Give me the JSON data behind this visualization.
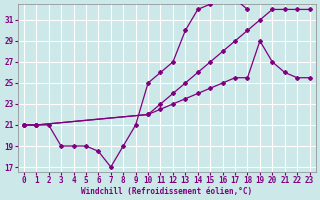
{
  "xlabel": "Windchill (Refroidissement éolien,°C)",
  "bg_color": "#cce8e8",
  "line_color": "#800080",
  "grid_color": "#ffffff",
  "xlim": [
    -0.5,
    23.5
  ],
  "ylim": [
    16.5,
    32.5
  ],
  "xticks": [
    0,
    1,
    2,
    3,
    4,
    5,
    6,
    7,
    8,
    9,
    10,
    11,
    12,
    13,
    14,
    15,
    16,
    17,
    18,
    19,
    20,
    21,
    22,
    23
  ],
  "yticks": [
    17,
    19,
    21,
    23,
    25,
    27,
    29,
    31
  ],
  "line1_x": [
    0,
    1,
    2,
    3,
    4,
    5,
    6,
    7,
    8,
    9,
    10,
    11,
    12,
    13,
    14,
    15,
    16,
    17,
    18
  ],
  "line1_y": [
    21,
    21,
    21,
    19,
    19,
    19,
    18.5,
    17,
    19,
    21,
    25,
    26,
    27,
    30,
    32,
    32.5,
    33,
    33,
    32
  ],
  "line2_x": [
    0,
    1,
    10,
    11,
    12,
    13,
    14,
    15,
    16,
    17,
    18,
    19,
    20,
    21,
    22,
    23
  ],
  "line2_y": [
    21,
    21,
    22,
    23,
    24,
    25,
    26,
    27,
    28,
    29,
    30,
    31,
    32,
    32,
    32,
    32
  ],
  "line3_x": [
    0,
    1,
    10,
    11,
    12,
    13,
    14,
    15,
    16,
    17,
    18,
    19,
    20,
    21,
    22,
    23
  ],
  "line3_y": [
    21,
    21,
    22,
    22.5,
    23,
    23.5,
    24,
    24.5,
    25,
    25.5,
    25.5,
    29,
    27,
    26,
    25.5,
    25.5
  ]
}
